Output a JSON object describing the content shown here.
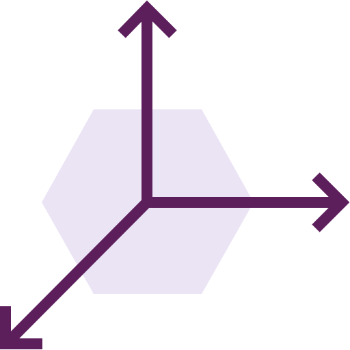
{
  "icon": {
    "name": "3d-axes-icon",
    "colors": {
      "stroke": "#5c1f5c",
      "hexagon_fill": "#ebe4f5",
      "background": "#ffffff"
    },
    "axes": [
      "up",
      "right",
      "down-left"
    ]
  }
}
